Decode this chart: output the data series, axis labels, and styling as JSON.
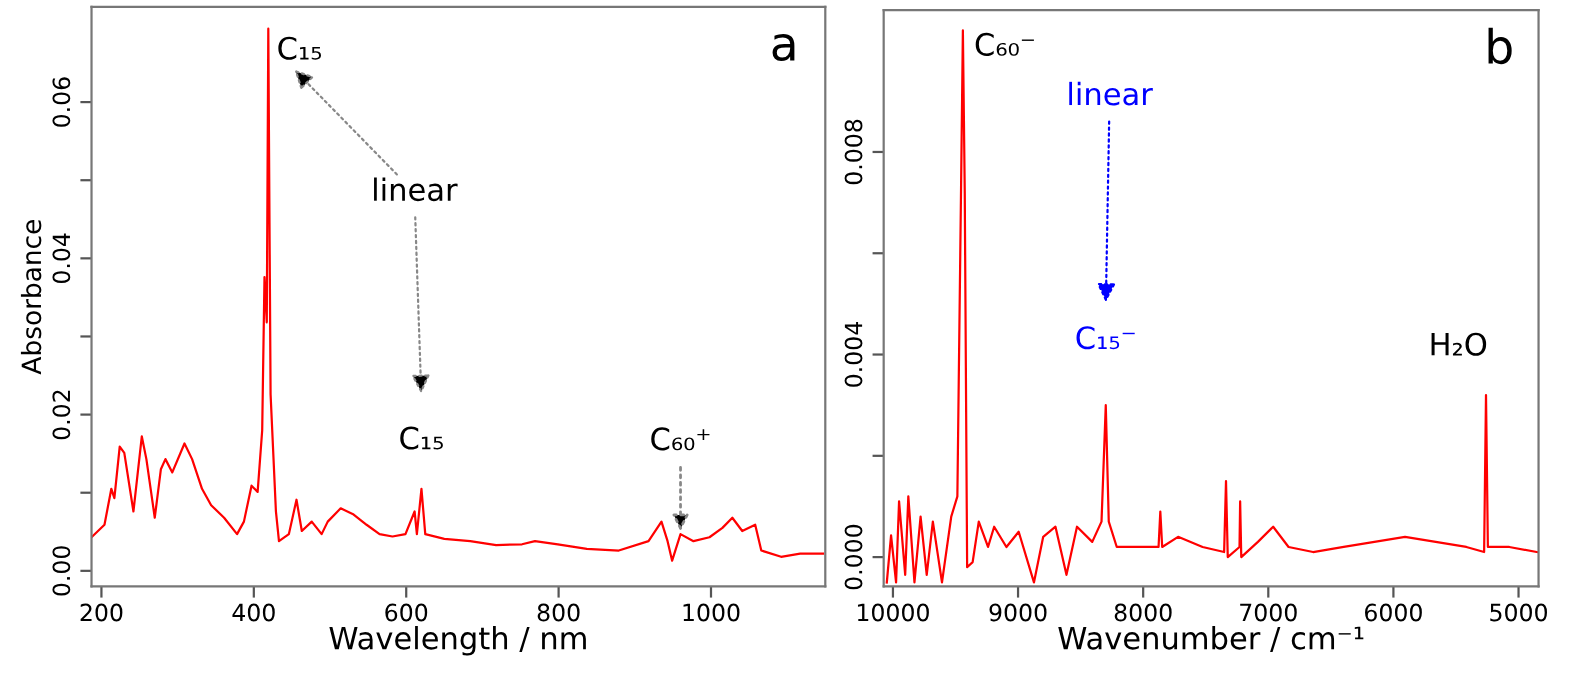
{
  "chart_data": [
    {
      "type": "line",
      "xlabel": "Wavelength / nm",
      "ylabel": "Absorbance",
      "x": [
        187,
        204,
        213,
        217,
        224,
        230,
        242,
        253,
        259,
        270,
        278,
        284,
        293,
        309,
        319,
        332,
        344,
        361,
        378,
        387,
        397,
        405,
        411,
        414,
        417,
        419,
        422,
        429,
        433,
        446,
        456,
        463,
        476,
        489,
        497,
        514,
        531,
        548,
        565,
        582,
        599,
        611,
        614,
        620,
        625,
        650,
        684,
        718,
        752,
        769,
        799,
        837,
        879,
        918,
        935,
        943,
        949,
        960,
        977,
        998,
        1015,
        1028,
        1041,
        1058,
        1066,
        1092,
        1117,
        1147
      ],
      "series": [
        {
          "color": "#ff0000",
          "values": [
            0.0043,
            0.0059,
            0.0105,
            0.0093,
            0.0159,
            0.0151,
            0.0076,
            0.0172,
            0.0143,
            0.0068,
            0.013,
            0.0143,
            0.0126,
            0.0163,
            0.0143,
            0.0105,
            0.0084,
            0.0068,
            0.0047,
            0.0063,
            0.0109,
            0.0101,
            0.018,
            0.0376,
            0.0318,
            0.0694,
            0.0226,
            0.0076,
            0.0038,
            0.0047,
            0.0091,
            0.0051,
            0.0063,
            0.0047,
            0.0063,
            0.008,
            0.0072,
            0.0059,
            0.0047,
            0.0044,
            0.0047,
            0.0076,
            0.0047,
            0.0105,
            0.0047,
            0.0041,
            0.0038,
            0.0033,
            0.0034,
            0.0038,
            0.0034,
            0.0028,
            0.0026,
            0.0038,
            0.0063,
            0.0038,
            0.0013,
            0.0047,
            0.0038,
            0.0043,
            0.0055,
            0.0068,
            0.0051,
            0.0059,
            0.0026,
            0.0018,
            0.0022,
            0.0022
          ]
        }
      ],
      "xlim": [
        187,
        1150
      ],
      "ylim": [
        -0.002,
        0.0722
      ],
      "xticks": [
        200,
        400,
        600,
        800,
        1000
      ],
      "yticks": [
        {
          "value": 0,
          "label": "0.00"
        },
        {
          "value": 0.01,
          "label": null
        },
        {
          "value": 0.02,
          "label": "0.02"
        },
        {
          "value": 0.03,
          "label": null
        },
        {
          "value": 0.04,
          "label": "0.04"
        },
        {
          "value": 0.05,
          "label": null
        },
        {
          "value": 0.06,
          "label": "0.06"
        }
      ],
      "annotations": [
        "a",
        {
          "text": "C₁₅",
          "x": 419,
          "y": 0.0694
        },
        "linear",
        {
          "text": "C₁₅",
          "x": 620,
          "y": 0.0105
        },
        {
          "text": "C₆₀⁺",
          "x": 960,
          "y": 0.0047
        }
      ]
    },
    {
      "type": "line",
      "xlabel": "Wavenumber / cm⁻¹",
      "x": [
        10049,
        10015,
        9975,
        9951,
        9902,
        9877,
        9828,
        9779,
        9730,
        9681,
        9608,
        9534,
        9485,
        9456,
        9441,
        9426,
        9407,
        9363,
        9314,
        9240,
        9191,
        9093,
        8995,
        8873,
        8799,
        8701,
        8613,
        8529,
        8407,
        8333,
        8299,
        8275,
        8211,
        8015,
        7877,
        7863,
        7848,
        7721,
        7525,
        7353,
        7338,
        7324,
        7230,
        7225,
        7216,
        7083,
        6961,
        6838,
        6642,
        6397,
        6152,
        5907,
        5662,
        5417,
        5275,
        5260,
        5245,
        5074,
        4853
      ],
      "series": [
        {
          "color": "#ff0000",
          "values": [
            -0.0005,
            0.00043,
            -0.0005,
            0.0011,
            -0.00035,
            0.0012,
            -0.0005,
            0.0008,
            -0.00035,
            0.0007,
            -0.0005,
            0.0008,
            0.0012,
            0.0072,
            0.0104,
            0.0072,
            -0.0002,
            -0.0001,
            0.0007,
            0.0002,
            0.0006,
            0.0002,
            0.0005,
            -0.0005,
            0.0004,
            0.0006,
            -0.00035,
            0.0006,
            0.0003,
            0.0007,
            0.003,
            0.0007,
            0.0002,
            0.0002,
            0.0002,
            0.0009,
            0.0002,
            0.0004,
            0.0002,
            0.0001,
            0.0015,
            0.0,
            0.0002,
            0.0011,
            0.0,
            0.0003,
            0.0006,
            0.0002,
            0.0001,
            0.0002,
            0.0003,
            0.0004,
            0.0003,
            0.0002,
            0.0001,
            0.0032,
            0.0002,
            0.0002,
            0.0001
          ]
        }
      ],
      "xlim": [
        10074,
        4840
      ],
      "ylim": [
        -0.00058,
        0.0108
      ],
      "xticks": [
        10000,
        9000,
        8000,
        7000,
        6000,
        5000
      ],
      "yticks": [
        {
          "value": 0,
          "label": "0.000"
        },
        {
          "value": 0.002,
          "label": null
        },
        {
          "value": 0.004,
          "label": "0.004"
        },
        {
          "value": 0.006,
          "label": null
        },
        {
          "value": 0.008,
          "label": "0.008"
        }
      ],
      "annotations": [
        "b",
        {
          "text": "C₆₀⁻",
          "x": 9441,
          "y": 0.0104
        },
        "linear",
        {
          "text": "C₁₅⁻",
          "x": 8299,
          "y": 0.003
        },
        {
          "text": "H₂O",
          "x": 5260,
          "y": 0.0032
        }
      ]
    }
  ]
}
